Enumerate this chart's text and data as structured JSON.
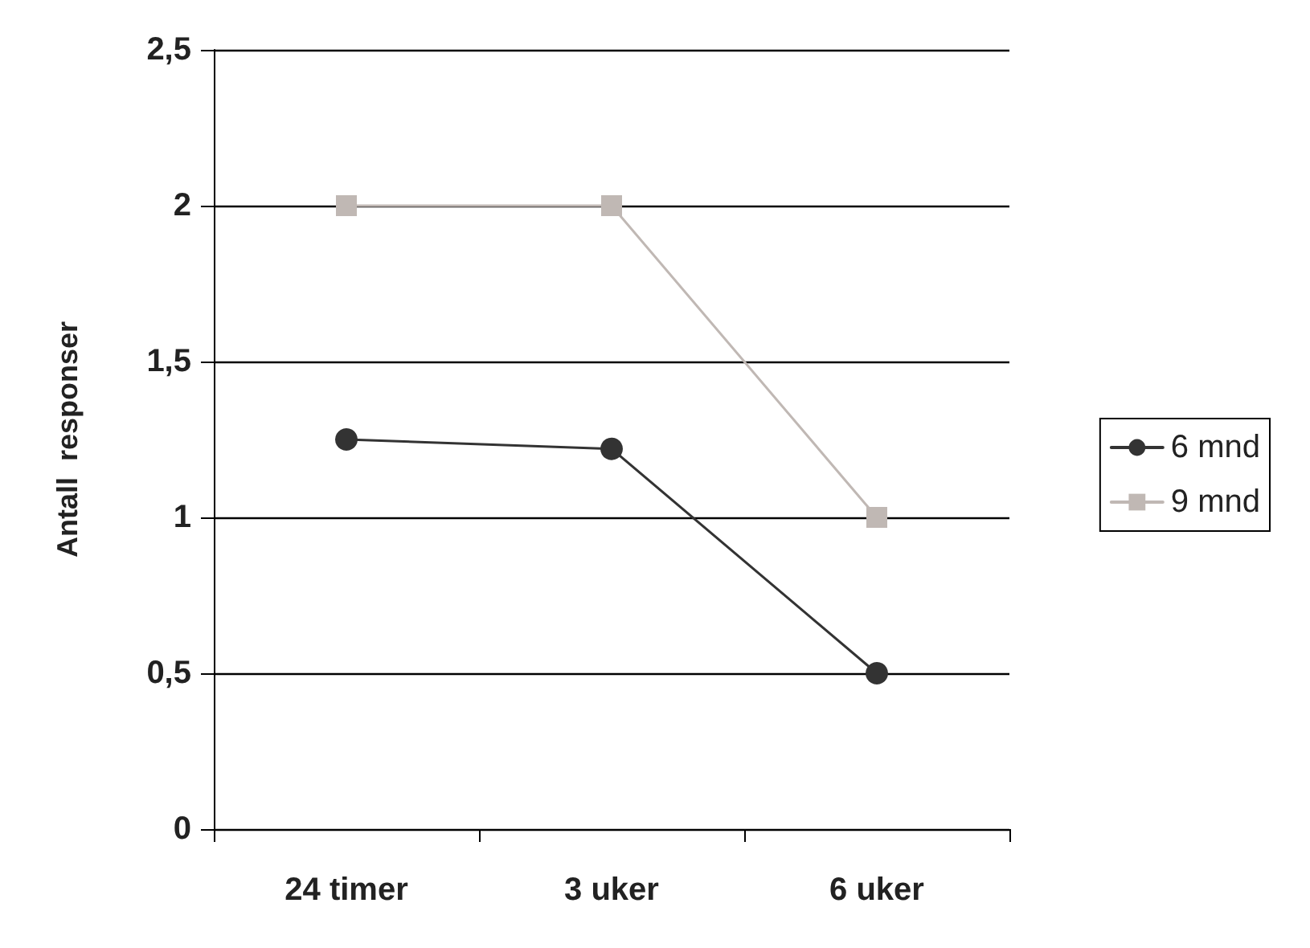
{
  "chart_data": {
    "type": "line",
    "ylabel": "Antall  responser",
    "categories": [
      "24 timer",
      "3 uker",
      "6 uker"
    ],
    "series": [
      {
        "name": "6 mnd",
        "color": "#333333",
        "marker": "circle",
        "values": [
          1.25,
          1.22,
          0.5
        ]
      },
      {
        "name": "9 mnd",
        "color": "#c0b8b4",
        "marker": "square",
        "values": [
          2,
          2,
          1
        ]
      }
    ],
    "ylim": [
      0,
      2.5
    ],
    "yticks": [
      0,
      {
        "value": 0.5,
        "label": "0,5"
      },
      1,
      {
        "value": 1.5,
        "label": "1,5"
      },
      2,
      {
        "value": 2.5,
        "label": "2,5"
      }
    ],
    "grid": "y",
    "legend": "right",
    "line_style": "solid"
  }
}
